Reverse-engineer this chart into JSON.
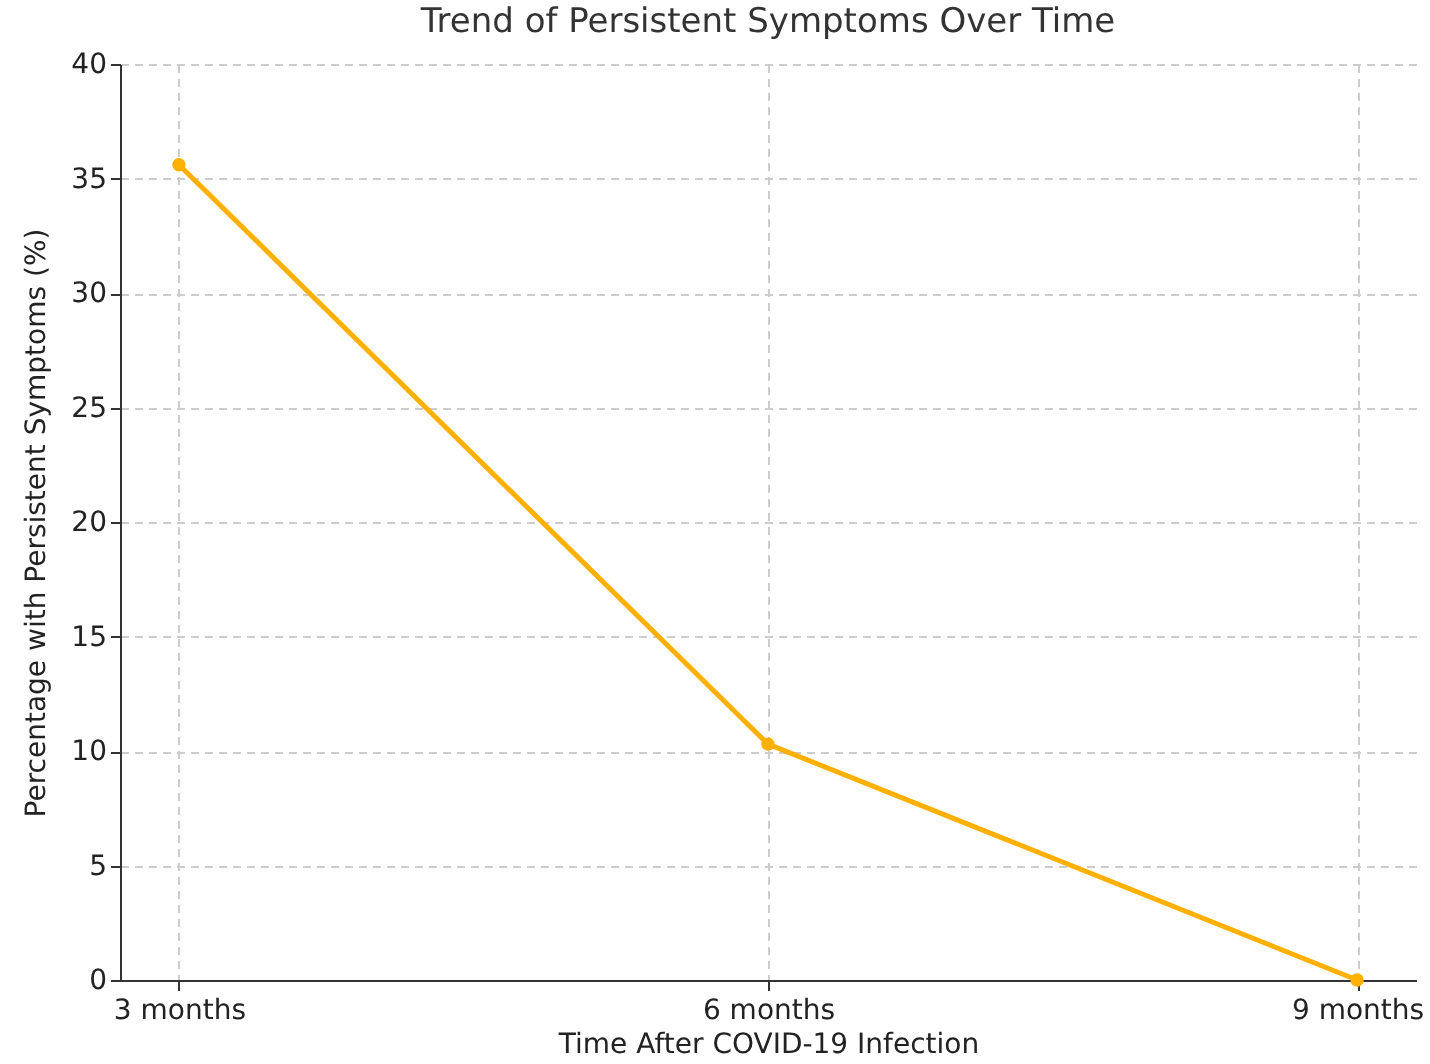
{
  "chart_data": {
    "type": "line",
    "title": "Trend of Persistent Symptoms Over Time",
    "xlabel": "Time After COVID-19 Infection",
    "ylabel": "Percentage with Persistent Symptoms (%)",
    "categories": [
      "3 months",
      "6 months",
      "9 months"
    ],
    "series": [
      {
        "color": "#ffb000",
        "values": [
          35.6,
          10.3,
          0
        ]
      }
    ],
    "ylim": [
      0,
      40
    ],
    "yticks": [
      0,
      5,
      10,
      15,
      20,
      25,
      30,
      35,
      40
    ],
    "grid": true,
    "marker": "circle",
    "line_style": "solid"
  }
}
